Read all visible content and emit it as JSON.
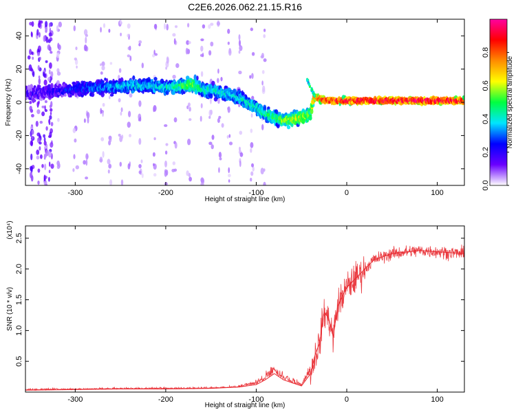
{
  "figure": {
    "title": "C2E6.2026.062.21.15.R16"
  },
  "chart_data": [
    {
      "type": "heatmap",
      "title": "C2E6.2026.062.21.15.R16",
      "xlabel": "Height of straight line (km)",
      "ylabel": "Frequency (Hz)",
      "xlim": [
        -355,
        130
      ],
      "ylim": [
        -50,
        50
      ],
      "xticks": [
        -300,
        -200,
        -100,
        0,
        100
      ],
      "yticks": [
        -40,
        -20,
        0,
        20,
        40
      ],
      "xtick_labels": [
        "-300",
        "-200",
        "-100",
        "0",
        "100"
      ],
      "ytick_labels": [
        "-40",
        "-20",
        "0",
        "20",
        "40"
      ],
      "colorbar": {
        "label": "Normalized spectral amplitude",
        "range": [
          0,
          1
        ],
        "ticks": [
          0.0,
          0.2,
          0.4,
          0.6,
          0.8
        ],
        "tick_labels": [
          "0.0",
          "0.2",
          "0.4",
          "0.6",
          "0.8"
        ],
        "colormap": [
          "#ffffff",
          "#6a00ff",
          "#0000ff",
          "#00e5ff",
          "#00ff40",
          "#ffff00",
          "#ff8c00",
          "#ff0000",
          "#ff00a0"
        ]
      },
      "ridge": {
        "height_km": [
          -350,
          -320,
          -300,
          -280,
          -260,
          -240,
          -220,
          -200,
          -180,
          -170,
          -160,
          -140,
          -120,
          -100,
          -90,
          -80,
          -70,
          -60,
          -50,
          -40,
          -36,
          -30,
          -20,
          0,
          50,
          100,
          130
        ],
        "freq_hz": [
          5,
          7,
          8,
          9,
          9,
          10,
          10,
          9,
          10,
          11,
          8,
          6,
          3,
          -3,
          -7,
          -9,
          -11,
          -10,
          -9,
          -7,
          3,
          2,
          1,
          1,
          1,
          1,
          1
        ],
        "amplitude": [
          0.15,
          0.2,
          0.25,
          0.3,
          0.35,
          0.4,
          0.4,
          0.4,
          0.5,
          0.55,
          0.45,
          0.4,
          0.4,
          0.42,
          0.48,
          0.5,
          0.55,
          0.6,
          0.62,
          0.55,
          0.8,
          0.85,
          0.9,
          0.95,
          0.98,
          0.98,
          0.95
        ]
      }
    },
    {
      "type": "line",
      "xlabel": "Height of straight line (km)",
      "ylabel": "SNR (10 * v/v)",
      "scale_label": "(x10⁴)",
      "xlim": [
        -355,
        130
      ],
      "ylim": [
        0,
        2.7
      ],
      "xticks": [
        -300,
        -200,
        -100,
        0,
        100
      ],
      "yticks": [
        0.5,
        1.0,
        1.5,
        2.0,
        2.5
      ],
      "xtick_labels": [
        "-300",
        "-200",
        "-100",
        "0",
        "100"
      ],
      "ytick_labels": [
        "0.5",
        "1.0",
        "1.5",
        "2.0",
        "2.5"
      ],
      "series": [
        {
          "name": "SNR",
          "color": "#e8272d",
          "x": [
            -355,
            -300,
            -250,
            -200,
            -150,
            -120,
            -100,
            -90,
            -80,
            -70,
            -60,
            -50,
            -40,
            -35,
            -30,
            -25,
            -20,
            -15,
            -10,
            0,
            10,
            20,
            30,
            50,
            80,
            100,
            130
          ],
          "y": [
            0.03,
            0.04,
            0.05,
            0.05,
            0.06,
            0.08,
            0.12,
            0.2,
            0.3,
            0.2,
            0.15,
            0.1,
            0.3,
            0.6,
            0.8,
            1.3,
            1.2,
            0.9,
            1.4,
            1.7,
            1.85,
            2.0,
            2.15,
            2.25,
            2.3,
            2.28,
            2.25
          ]
        }
      ]
    }
  ]
}
